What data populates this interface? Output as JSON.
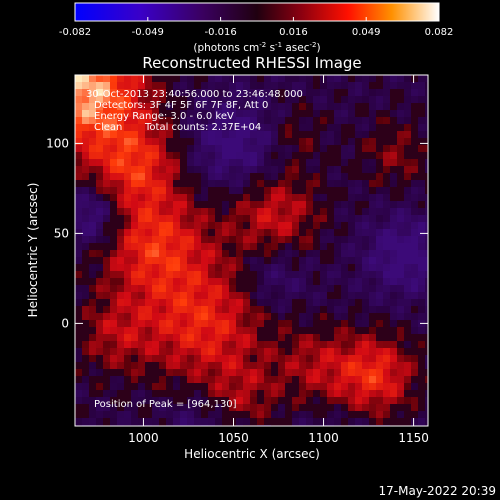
{
  "chart_data": {
    "type": "heatmap",
    "title": "Reconstructed RHESSI Image",
    "xlabel": "Heliocentric X (arcsec)",
    "ylabel": "Heliocentric Y (arcsec)",
    "xlim": [
      962,
      1158
    ],
    "ylim": [
      -57,
      138
    ],
    "x_ticks": [
      1000,
      1050,
      1100,
      1150
    ],
    "y_ticks": [
      0,
      50,
      100
    ],
    "colorbar": {
      "range": [
        -0.082,
        0.082
      ],
      "ticks": [
        "-0.082",
        "-0.049",
        "-0.016",
        "0.016",
        "0.049",
        "0.082"
      ],
      "unit_main": "(photons cm",
      "unit_exp1": "-2",
      "unit_mid": " s",
      "unit_exp2": "-1",
      "unit_end": " asec",
      "unit_exp3": "-2",
      "unit_close": ")"
    },
    "annotations": {
      "time_range": "30-Oct-2013 23:40:56.000 to 23:46:48.000",
      "detectors": "Detectors: 3F 4F 5F 6F 7F 8F, Att 0",
      "energy_range": "Energy Range: 3.0 - 6.0 keV",
      "algorithm": "Clean",
      "total_counts": "Total counts: 2.37E+04",
      "peak_position": "Position of Peak = [964,130]"
    },
    "peak": [
      964,
      130
    ]
  },
  "footer": {
    "date": "17-May-2022 20:39"
  },
  "colors": {
    "background": "#000000",
    "text": "#ffffff"
  }
}
